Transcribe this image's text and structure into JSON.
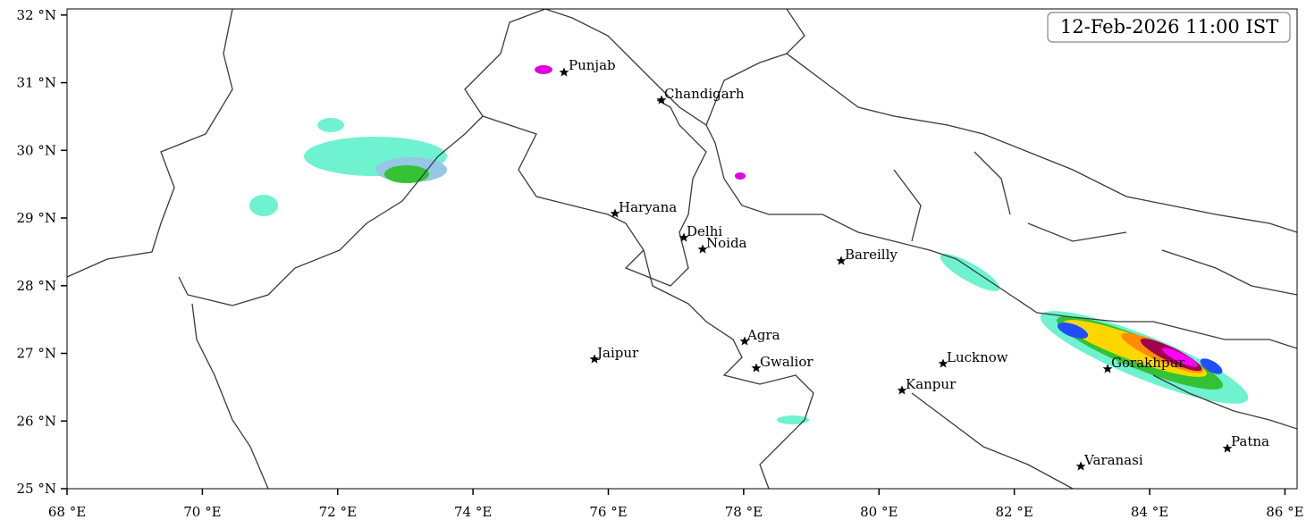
{
  "map": {
    "timestamp": "12-Feb-2026 11:00 IST",
    "xlim": [
      68,
      86.18
    ],
    "ylim": [
      25,
      32.09
    ],
    "xticks": [
      {
        "value": 68,
        "label": "68 °E"
      },
      {
        "value": 70,
        "label": "70 °E"
      },
      {
        "value": 72,
        "label": "72 °E"
      },
      {
        "value": 74,
        "label": "74 °E"
      },
      {
        "value": 76,
        "label": "76 °E"
      },
      {
        "value": 78,
        "label": "78 °E"
      },
      {
        "value": 80,
        "label": "80 °E"
      },
      {
        "value": 82,
        "label": "82 °E"
      },
      {
        "value": 84,
        "label": "84 °E"
      },
      {
        "value": 86,
        "label": "86 °E"
      }
    ],
    "yticks": [
      {
        "value": 25,
        "label": "25 °N"
      },
      {
        "value": 26,
        "label": "26 °N"
      },
      {
        "value": 27,
        "label": "27 °N"
      },
      {
        "value": 28,
        "label": "28 °N"
      },
      {
        "value": 29,
        "label": "29 °N"
      },
      {
        "value": 30,
        "label": "30 °N"
      },
      {
        "value": 31,
        "label": "31 °N"
      },
      {
        "value": 32,
        "label": "32 °N"
      }
    ],
    "cities": [
      "Punjab",
      "Chandigarh",
      "Haryana",
      "Delhi",
      "Noida",
      "Bareilly",
      "Agra",
      "Jaipur",
      "Gwalior",
      "Lucknow",
      "Kanpur",
      "Gorakhpur",
      "Patna",
      "Varanasi"
    ]
  }
}
